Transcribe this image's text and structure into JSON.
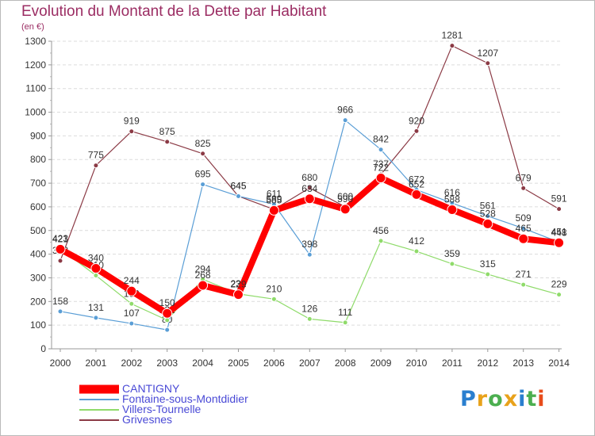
{
  "title": "Evolution du Montant de la Dette par Habitant",
  "unit_label": "(en €)",
  "brand": {
    "letters": [
      "P",
      "r",
      "o",
      "x",
      "i",
      "t",
      "i"
    ],
    "colors": [
      "#2a7fcf",
      "#e8a21b",
      "#4caf50",
      "#e8a21b",
      "#2a7fcf",
      "#4caf50",
      "#e84c1b"
    ]
  },
  "chart_data": {
    "type": "line",
    "x": [
      "2000",
      "2001",
      "2002",
      "2003",
      "2004",
      "2005",
      "2006",
      "2007",
      "2008",
      "2009",
      "2010",
      "2011",
      "2012",
      "2013",
      "2014"
    ],
    "ylim": [
      0,
      1300
    ],
    "yticks": [
      0,
      100,
      200,
      300,
      400,
      500,
      600,
      700,
      800,
      900,
      1000,
      1100,
      1200,
      1300
    ],
    "grid": true,
    "legend_position": "bottom-left",
    "series": [
      {
        "name": "Grivesnes",
        "color": "#8b3a45",
        "width": 1.2,
        "marker_r": 3,
        "values": [
          372,
          775,
          919,
          875,
          825,
          645,
          589,
          680,
          600,
          737,
          920,
          1281,
          1207,
          679,
          591
        ],
        "labels": [
          "372",
          "775",
          "919",
          "875",
          "825",
          "645",
          "589",
          "680",
          "600",
          "737",
          "920",
          "1281",
          "1207",
          "679",
          "591"
        ]
      },
      {
        "name": "Fontaine-sous-Montdidier",
        "color": "#5a9ed6",
        "width": 1.2,
        "marker_r": 3,
        "values": [
          158,
          131,
          107,
          80,
          695,
          645,
          611,
          398,
          966,
          842,
          672,
          616,
          561,
          509,
          451
        ],
        "labels": [
          "158",
          "131",
          "107",
          "80",
          "695",
          "645",
          "611",
          "398",
          "966",
          "842",
          "672",
          "616",
          "561",
          "509",
          "451"
        ]
      },
      {
        "name": "Villers-Tournelle",
        "color": "#8fdb6a",
        "width": 1.2,
        "marker_r": 3,
        "values": [
          423,
          310,
          190,
          121,
          294,
          232,
          210,
          126,
          111,
          456,
          412,
          359,
          315,
          271,
          229
        ],
        "labels": [
          "423",
          "310",
          "190",
          "121",
          "294",
          "232",
          "210",
          "126",
          "111",
          "456",
          "412",
          "359",
          "315",
          "271",
          "229"
        ]
      },
      {
        "name": "CANTIGNY",
        "color": "#ff0000",
        "width": 8,
        "marker_r": 6,
        "values": [
          421,
          340,
          244,
          150,
          268,
          229,
          585,
          634,
          590,
          722,
          652,
          588,
          528,
          465,
          448
        ],
        "labels": [
          "421",
          "340",
          "244",
          "150",
          "268",
          "229",
          "585",
          "634",
          "590",
          "722",
          "652",
          "588",
          "528",
          "465",
          "448"
        ]
      }
    ]
  }
}
